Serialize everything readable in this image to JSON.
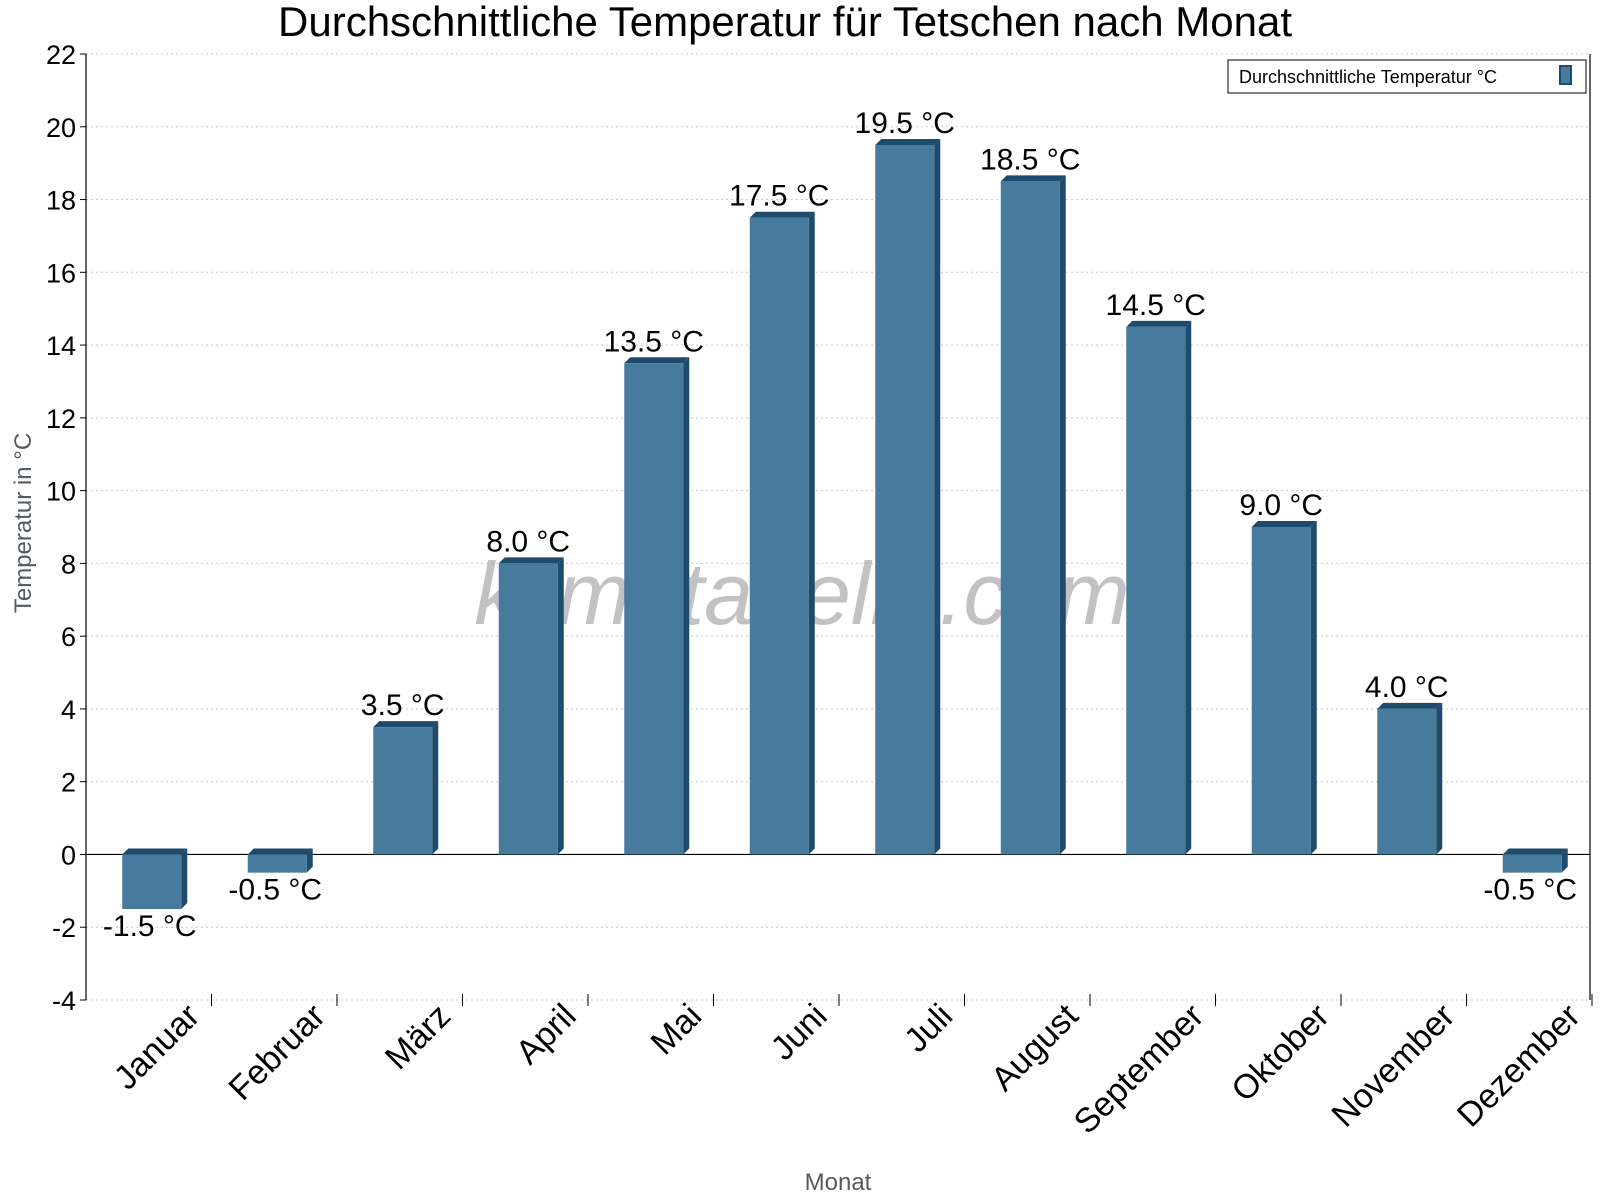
{
  "chart_data": {
    "type": "bar",
    "title": "Durchschnittliche Temperatur für Tetschen nach Monat",
    "xlabel": "Monat",
    "ylabel": "Temperatur in °C",
    "categories": [
      "Januar",
      "Februar",
      "März",
      "April",
      "Mai",
      "Juni",
      "Juli",
      "August",
      "September",
      "Oktober",
      "November",
      "Dezember"
    ],
    "series": [
      {
        "name": "Durchschnittliche Temperatur °C",
        "values": [
          -1.5,
          -0.5,
          3.5,
          8.0,
          13.5,
          17.5,
          19.5,
          18.5,
          14.5,
          9.0,
          4.0,
          -0.5
        ],
        "labels": [
          "-1.5 °C",
          "-0.5 °C",
          "3.5 °C",
          "8.0 °C",
          "13.5 °C",
          "17.5 °C",
          "19.5 °C",
          "18.5 °C",
          "14.5 °C",
          "9.0 °C",
          "4.0 °C",
          "-0.5 °C"
        ],
        "color": "#467b9d",
        "edge_color": "#1e4b6b"
      }
    ],
    "ylim": [
      -4,
      22
    ],
    "yticks": [
      "-4",
      "-2",
      "0",
      "2",
      "4",
      "6",
      "8",
      "10",
      "12",
      "14",
      "16",
      "18",
      "20",
      "22"
    ],
    "grid": true,
    "legend_position": "top-right",
    "watermark": "klimatabelle.com"
  }
}
